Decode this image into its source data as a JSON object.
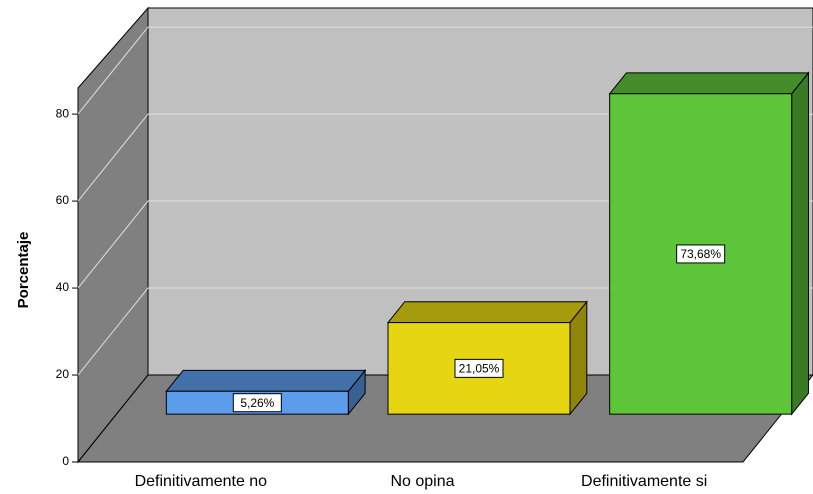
{
  "chart_data": {
    "type": "bar3d",
    "y_label": "Porcentaje",
    "categories": [
      "Definitivamente no",
      "No opina",
      "Definitivamente si"
    ],
    "values": [
      5.26,
      21.05,
      73.68
    ],
    "value_labels": [
      "5,26%",
      "21,05%",
      "73,68%"
    ],
    "colors": [
      "#5b9ceb",
      "#e6d612",
      "#5ec43a"
    ],
    "ylim": [
      0,
      86
    ],
    "yticks": [
      0,
      20,
      40,
      60,
      80
    ],
    "grid": true
  }
}
